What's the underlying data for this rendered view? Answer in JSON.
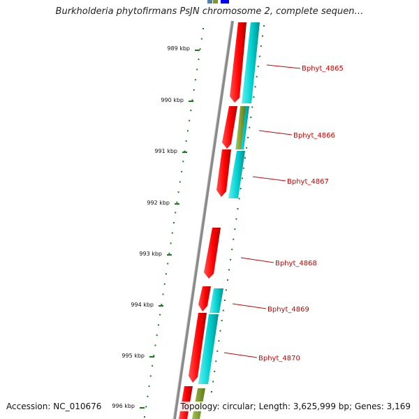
{
  "title": "Burkholderia phytofirmans PsJN chromosome 2, complete sequen…",
  "footer": {
    "accession": "Accession: NC_010676",
    "summary": "Topology: circular; Length: 3,625,999 bp; Genes: 3,169"
  },
  "ticks": [
    "989 kbp",
    "990 kbp",
    "991 kbp",
    "992 kbp",
    "993 kbp",
    "994 kbp",
    "995 kbp",
    "996 kbp"
  ],
  "genes": [
    "Bphyt_4865",
    "Bphyt_4866",
    "Bphyt_4867",
    "Bphyt_4868",
    "Bphyt_4869",
    "Bphyt_4870"
  ],
  "colors": {
    "forward_cds": "#ff0000",
    "reverse_cds": "#00cccc",
    "olive_feature": "#7a9a2a",
    "blue_feature": "#0000ee",
    "backbone": "#808080",
    "tick": "#1a7a1a",
    "label": "#cc0000"
  }
}
